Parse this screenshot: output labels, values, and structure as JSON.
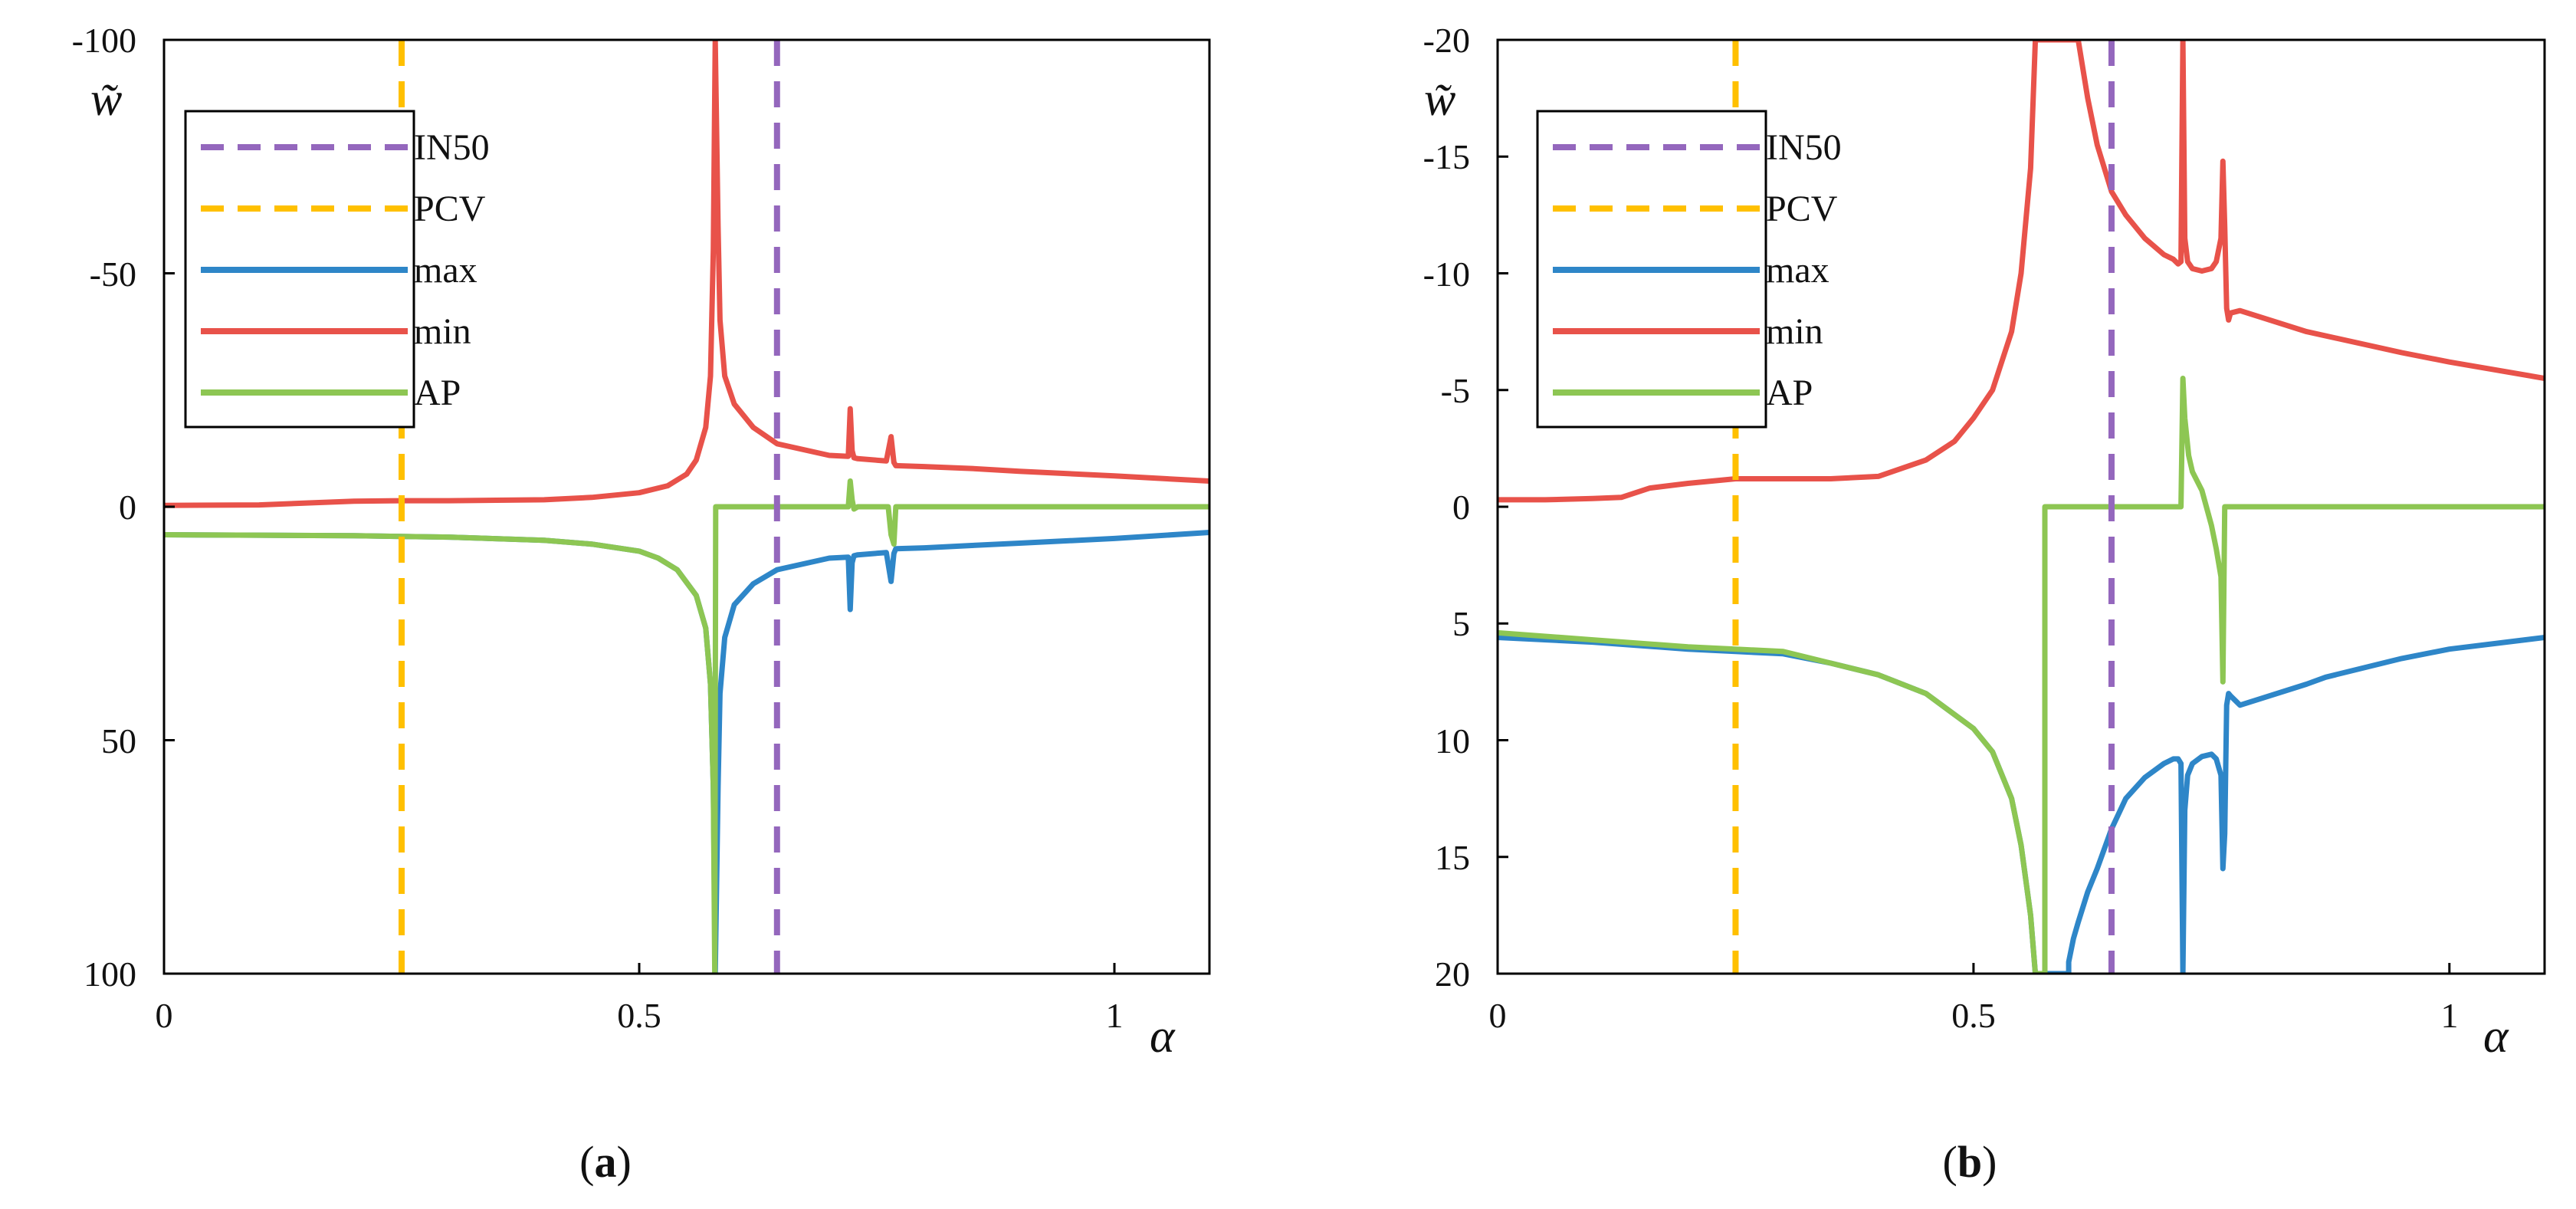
{
  "colors": {
    "IN50": "#9467bd",
    "PCV": "#ffc000",
    "max": "#2e86c8",
    "min": "#e8524a",
    "AP": "#8dc653"
  },
  "chart_data": [
    {
      "type": "line",
      "panel": "a",
      "caption": {
        "open": "(",
        "letter": "a",
        "close": ")"
      },
      "xlabel": "α",
      "ylabel": "w̃",
      "xlim": [
        0,
        1.1
      ],
      "ylim": [
        -100,
        100
      ],
      "y_inverted": true,
      "x_ticks": [
        {
          "value": 0,
          "label": "0"
        },
        {
          "value": 0.5,
          "label": "0.5"
        },
        {
          "value": 1,
          "label": "1"
        }
      ],
      "y_ticks": [
        {
          "value": -100,
          "label": "-100"
        },
        {
          "value": -50,
          "label": "-50"
        },
        {
          "value": 0,
          "label": "0"
        },
        {
          "value": 50,
          "label": "50"
        },
        {
          "value": 100,
          "label": "100"
        }
      ],
      "legend": [
        "IN50",
        "PCV",
        "max",
        "min",
        "AP"
      ],
      "vlines": [
        {
          "name": "IN50",
          "x": 0.645,
          "dashed": true
        },
        {
          "name": "PCV",
          "x": 0.25,
          "dashed": true
        }
      ],
      "series": [
        {
          "name": "max",
          "x": [
            0,
            0.1,
            0.2,
            0.3,
            0.4,
            0.45,
            0.5,
            0.52,
            0.54,
            0.56,
            0.57,
            0.575,
            0.578,
            0.58,
            0.583,
            0.585,
            0.59,
            0.6,
            0.62,
            0.645,
            0.7,
            0.72,
            0.722,
            0.724,
            0.726,
            0.73,
            0.76,
            0.765,
            0.768,
            0.77,
            0.8,
            0.85,
            0.9,
            1.0,
            1.1
          ],
          "y": [
            6,
            6.1,
            6.2,
            6.5,
            7.2,
            8,
            9.5,
            11,
            13.5,
            19,
            26,
            38,
            60,
            100,
            60,
            40,
            28,
            21,
            16.5,
            13.5,
            11,
            10.8,
            22,
            12,
            10.5,
            10.3,
            9.8,
            16,
            10,
            9,
            8.8,
            8.3,
            7.8,
            6.8,
            5.5
          ]
        },
        {
          "name": "min",
          "x": [
            0,
            0.1,
            0.15,
            0.2,
            0.25,
            0.3,
            0.4,
            0.45,
            0.5,
            0.53,
            0.55,
            0.56,
            0.57,
            0.575,
            0.578,
            0.58,
            0.583,
            0.585,
            0.59,
            0.6,
            0.62,
            0.645,
            0.7,
            0.72,
            0.722,
            0.724,
            0.726,
            0.73,
            0.76,
            0.765,
            0.768,
            0.77,
            0.8,
            0.85,
            0.9,
            1.0,
            1.1
          ],
          "y": [
            -0.3,
            -0.4,
            -0.8,
            -1.2,
            -1.3,
            -1.3,
            -1.5,
            -2,
            -3,
            -4.5,
            -7,
            -10,
            -17,
            -28,
            -55,
            -100,
            -60,
            -40,
            -28,
            -22,
            -17,
            -13.5,
            -11,
            -10.8,
            -21,
            -12,
            -10.5,
            -10.3,
            -9.8,
            -15,
            -9.5,
            -8.8,
            -8.6,
            -8.2,
            -7.6,
            -6.6,
            -5.5
          ]
        },
        {
          "name": "AP",
          "x": [
            0,
            0.1,
            0.2,
            0.3,
            0.4,
            0.45,
            0.5,
            0.52,
            0.54,
            0.56,
            0.57,
            0.575,
            0.578,
            0.5795,
            0.5805,
            0.59,
            0.6,
            0.7,
            0.72,
            0.722,
            0.724,
            0.726,
            0.73,
            0.76,
            0.762,
            0.765,
            0.768,
            0.77,
            0.8,
            0.9,
            1.0,
            1.1
          ],
          "y": [
            6,
            6.1,
            6.2,
            6.5,
            7.2,
            8,
            9.5,
            11,
            13.5,
            19,
            26,
            38,
            60,
            100,
            0,
            0,
            0,
            0,
            0,
            -5.5,
            -1.5,
            0.5,
            0,
            0,
            0,
            6,
            8,
            0,
            0,
            0,
            0,
            0
          ]
        }
      ]
    },
    {
      "type": "line",
      "panel": "b",
      "caption": {
        "open": "(",
        "letter": "b",
        "close": ")"
      },
      "xlabel": "α",
      "ylabel": "w̃",
      "xlim": [
        0,
        1.1
      ],
      "ylim": [
        -20,
        20
      ],
      "y_inverted": true,
      "x_ticks": [
        {
          "value": 0,
          "label": "0"
        },
        {
          "value": 0.5,
          "label": "0.5"
        },
        {
          "value": 1,
          "label": "1"
        }
      ],
      "y_ticks": [
        {
          "value": -20,
          "label": "-20"
        },
        {
          "value": -15,
          "label": "-15"
        },
        {
          "value": -10,
          "label": "-10"
        },
        {
          "value": -5,
          "label": "-5"
        },
        {
          "value": 0,
          "label": "0"
        },
        {
          "value": 5,
          "label": "5"
        },
        {
          "value": 10,
          "label": "10"
        },
        {
          "value": 15,
          "label": "15"
        },
        {
          "value": 20,
          "label": "20"
        }
      ],
      "legend": [
        "IN50",
        "PCV",
        "max",
        "min",
        "AP"
      ],
      "vlines": [
        {
          "name": "IN50",
          "x": 0.645,
          "dashed": true
        },
        {
          "name": "PCV",
          "x": 0.25,
          "dashed": true
        }
      ],
      "series": [
        {
          "name": "max",
          "x": [
            0,
            0.1,
            0.2,
            0.25,
            0.3,
            0.35,
            0.4,
            0.45,
            0.5,
            0.52,
            0.54,
            0.55,
            0.56,
            0.565,
            0.6,
            0.6,
            0.605,
            0.61,
            0.62,
            0.63,
            0.645,
            0.66,
            0.68,
            0.7,
            0.71,
            0.715,
            0.718,
            0.72,
            0.722,
            0.725,
            0.73,
            0.74,
            0.75,
            0.755,
            0.76,
            0.762,
            0.764,
            0.766,
            0.768,
            0.77,
            0.78,
            0.85,
            0.87,
            0.95,
            1.0,
            1.1
          ],
          "y": [
            5.6,
            5.8,
            6.1,
            6.2,
            6.3,
            6.7,
            7.2,
            8,
            9.5,
            10.5,
            12.5,
            14.5,
            17.5,
            20,
            20,
            19.5,
            18.5,
            17.8,
            16.5,
            15.5,
            13.8,
            12.5,
            11.6,
            11,
            10.8,
            10.8,
            11,
            20,
            13,
            11.5,
            11,
            10.7,
            10.6,
            10.8,
            11.5,
            15.5,
            14,
            8.5,
            8,
            8.1,
            8.5,
            7.6,
            7.3,
            6.5,
            6.1,
            5.6
          ]
        },
        {
          "name": "min",
          "x": [
            0,
            0.05,
            0.1,
            0.13,
            0.16,
            0.2,
            0.25,
            0.3,
            0.35,
            0.4,
            0.45,
            0.48,
            0.5,
            0.52,
            0.54,
            0.55,
            0.56,
            0.565,
            0.61,
            0.62,
            0.63,
            0.645,
            0.66,
            0.68,
            0.7,
            0.71,
            0.715,
            0.718,
            0.72,
            0.722,
            0.725,
            0.73,
            0.74,
            0.75,
            0.755,
            0.76,
            0.762,
            0.764,
            0.766,
            0.768,
            0.77,
            0.78,
            0.85,
            0.95,
            1.0,
            1.1
          ],
          "y": [
            -0.3,
            -0.3,
            -0.35,
            -0.4,
            -0.8,
            -1.0,
            -1.2,
            -1.2,
            -1.2,
            -1.3,
            -2,
            -2.8,
            -3.8,
            -5,
            -7.5,
            -10,
            -14.5,
            -20,
            -20,
            -17.5,
            -15.5,
            -13.5,
            -12.5,
            -11.5,
            -10.8,
            -10.6,
            -10.4,
            -10.5,
            -20,
            -11.5,
            -10.5,
            -10.2,
            -10.1,
            -10.2,
            -10.5,
            -11.5,
            -14.8,
            -12,
            -8.5,
            -8,
            -8.3,
            -8.4,
            -7.5,
            -6.6,
            -6.2,
            -5.5
          ]
        },
        {
          "name": "AP",
          "x": [
            0,
            0.1,
            0.2,
            0.25,
            0.3,
            0.35,
            0.4,
            0.45,
            0.5,
            0.52,
            0.54,
            0.55,
            0.56,
            0.565,
            0.575,
            0.575,
            0.7,
            0.718,
            0.72,
            0.722,
            0.726,
            0.73,
            0.74,
            0.75,
            0.755,
            0.76,
            0.762,
            0.764,
            0.766,
            0.768,
            0.8,
            0.9,
            1.0,
            1.1
          ],
          "y": [
            5.4,
            5.7,
            6.0,
            6.1,
            6.2,
            6.7,
            7.2,
            8,
            9.5,
            10.5,
            12.5,
            14.5,
            17.5,
            20,
            20,
            0,
            0,
            0,
            -5.5,
            -3.8,
            -2.2,
            -1.5,
            -0.7,
            0.8,
            1.8,
            3,
            7.5,
            0,
            0,
            0,
            0,
            0,
            0,
            0
          ]
        }
      ]
    }
  ]
}
